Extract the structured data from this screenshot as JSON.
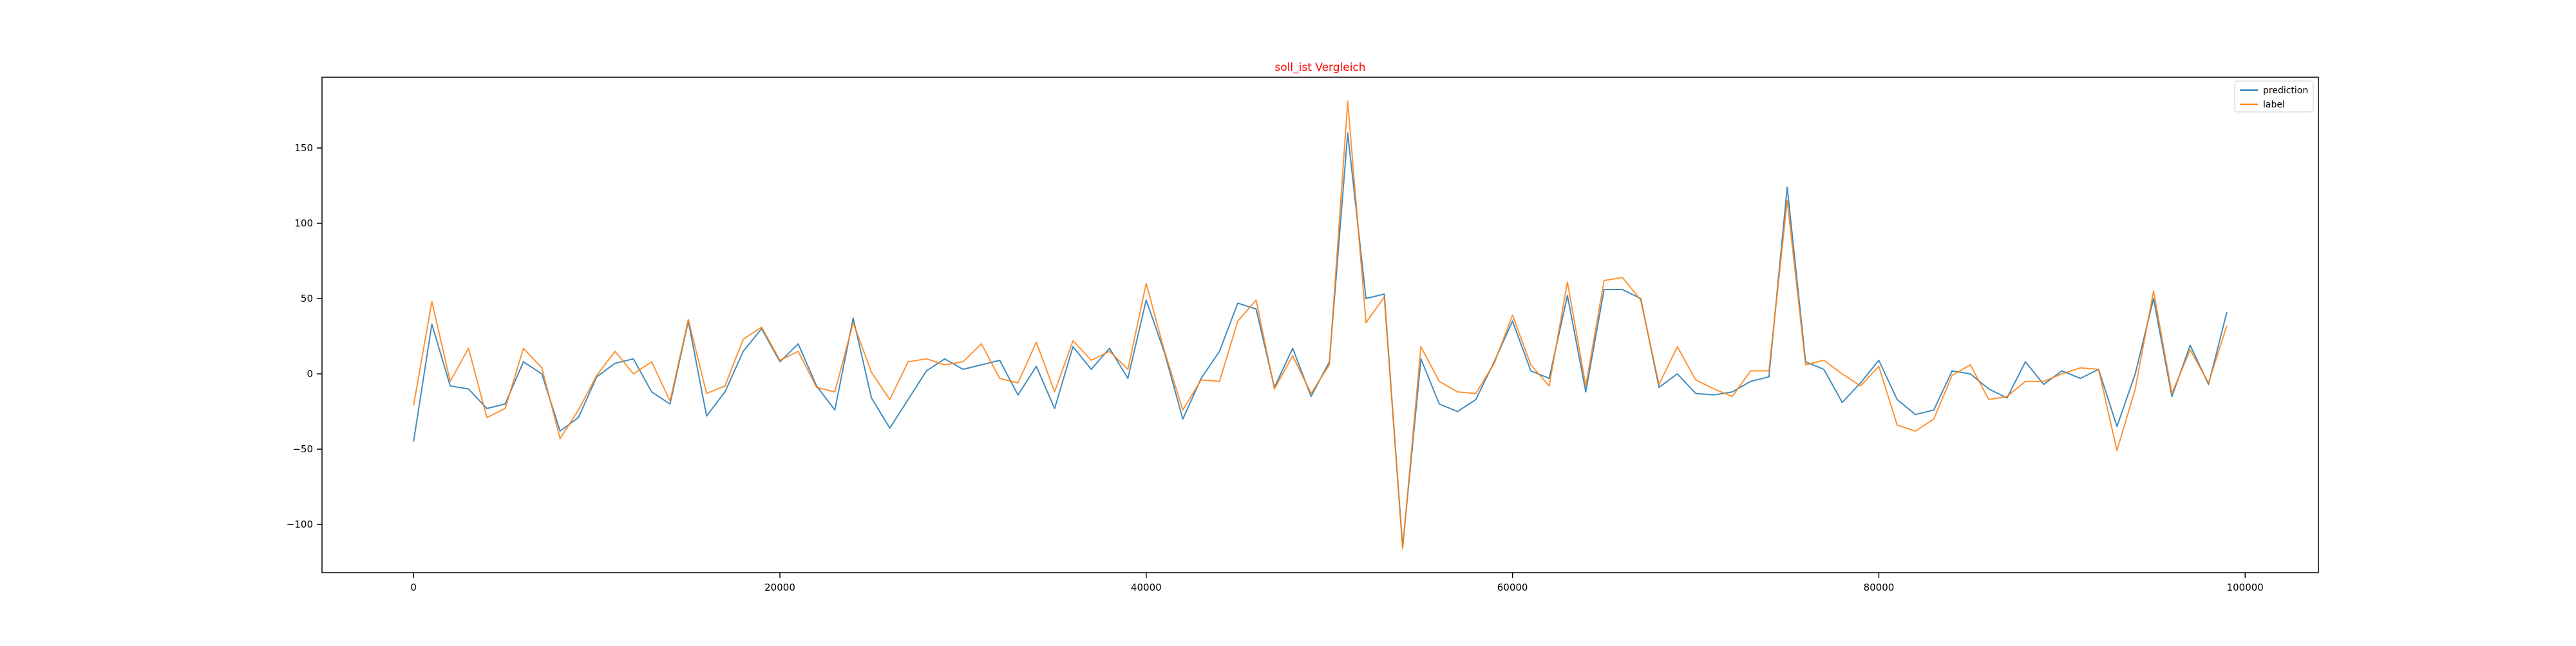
{
  "chart_data": {
    "type": "line",
    "title": "soll_ist Vergleich",
    "title_color": "#ff0000",
    "xlabel": "",
    "ylabel": "",
    "xlim": [
      -5000,
      104000
    ],
    "ylim": [
      -132,
      197
    ],
    "x_ticks": [
      0,
      20000,
      40000,
      60000,
      80000,
      100000
    ],
    "y_ticks": [
      -100,
      -50,
      0,
      50,
      100,
      150
    ],
    "grid": false,
    "legend_position": "upper right",
    "x": [
      0,
      1000,
      2000,
      3000,
      4000,
      5000,
      6000,
      7000,
      8000,
      9000,
      10000,
      11000,
      12000,
      13000,
      14000,
      15000,
      16000,
      17000,
      18000,
      19000,
      20000,
      21000,
      22000,
      23000,
      24000,
      25000,
      26000,
      27000,
      28000,
      29000,
      30000,
      31000,
      32000,
      33000,
      34000,
      35000,
      36000,
      37000,
      38000,
      39000,
      40000,
      41000,
      42000,
      43000,
      44000,
      45000,
      46000,
      47000,
      48000,
      49000,
      50000,
      51000,
      52000,
      53000,
      54000,
      55000,
      56000,
      57000,
      58000,
      59000,
      60000,
      61000,
      62000,
      63000,
      64000,
      65000,
      66000,
      67000,
      68000,
      69000,
      70000,
      71000,
      72000,
      73000,
      74000,
      75000,
      76000,
      77000,
      78000,
      79000,
      80000,
      81000,
      82000,
      83000,
      84000,
      85000,
      86000,
      87000,
      88000,
      89000,
      90000,
      91000,
      92000,
      93000,
      94000,
      95000,
      96000,
      97000,
      98000,
      99000
    ],
    "series": [
      {
        "name": "prediction",
        "color": "#1f77b4",
        "values": [
          -45,
          33,
          -8,
          -10,
          -23,
          -20,
          8,
          0,
          -38,
          -29,
          -2,
          7,
          10,
          -12,
          -20,
          35,
          -28,
          -12,
          15,
          30,
          8,
          20,
          -8,
          -24,
          37,
          -16,
          -36,
          -17,
          2,
          10,
          3,
          6,
          9,
          -14,
          5,
          -23,
          18,
          3,
          17,
          -3,
          49,
          14,
          -30,
          -3,
          15,
          47,
          43,
          -9,
          17,
          -15,
          8,
          160,
          50,
          53,
          -115,
          10,
          -20,
          -25,
          -17,
          8,
          35,
          2,
          -3,
          52,
          -12,
          56,
          56,
          50,
          -9,
          0,
          -13,
          -14,
          -12,
          -5,
          -2,
          124,
          8,
          3,
          -19,
          -6,
          9,
          -17,
          -27,
          -24,
          2,
          0,
          -10,
          -16,
          8,
          -7,
          2,
          -3,
          3,
          -35,
          0,
          50,
          -15,
          19,
          -7,
          41
        ]
      },
      {
        "name": "label",
        "color": "#ff7f0e",
        "values": [
          -21,
          48,
          -5,
          17,
          -29,
          -23,
          17,
          4,
          -43,
          -24,
          -1,
          15,
          0,
          8,
          -18,
          36,
          -13,
          -8,
          23,
          31,
          9,
          15,
          -9,
          -12,
          34,
          1,
          -17,
          8,
          10,
          6,
          8,
          20,
          -3,
          -6,
          21,
          -12,
          22,
          9,
          15,
          3,
          60,
          15,
          -24,
          -4,
          -5,
          35,
          49,
          -10,
          12,
          -13,
          6,
          181,
          34,
          51,
          -116,
          18,
          -5,
          -12,
          -13,
          7,
          39,
          6,
          -8,
          61,
          -8,
          62,
          64,
          49,
          -7,
          18,
          -4,
          -10,
          -15,
          2,
          2,
          115,
          6,
          9,
          0,
          -8,
          5,
          -34,
          -38,
          -30,
          -1,
          6,
          -17,
          -15,
          -5,
          -5,
          0,
          4,
          3,
          -51,
          -10,
          55,
          -13,
          16,
          -6,
          32
        ]
      }
    ]
  }
}
